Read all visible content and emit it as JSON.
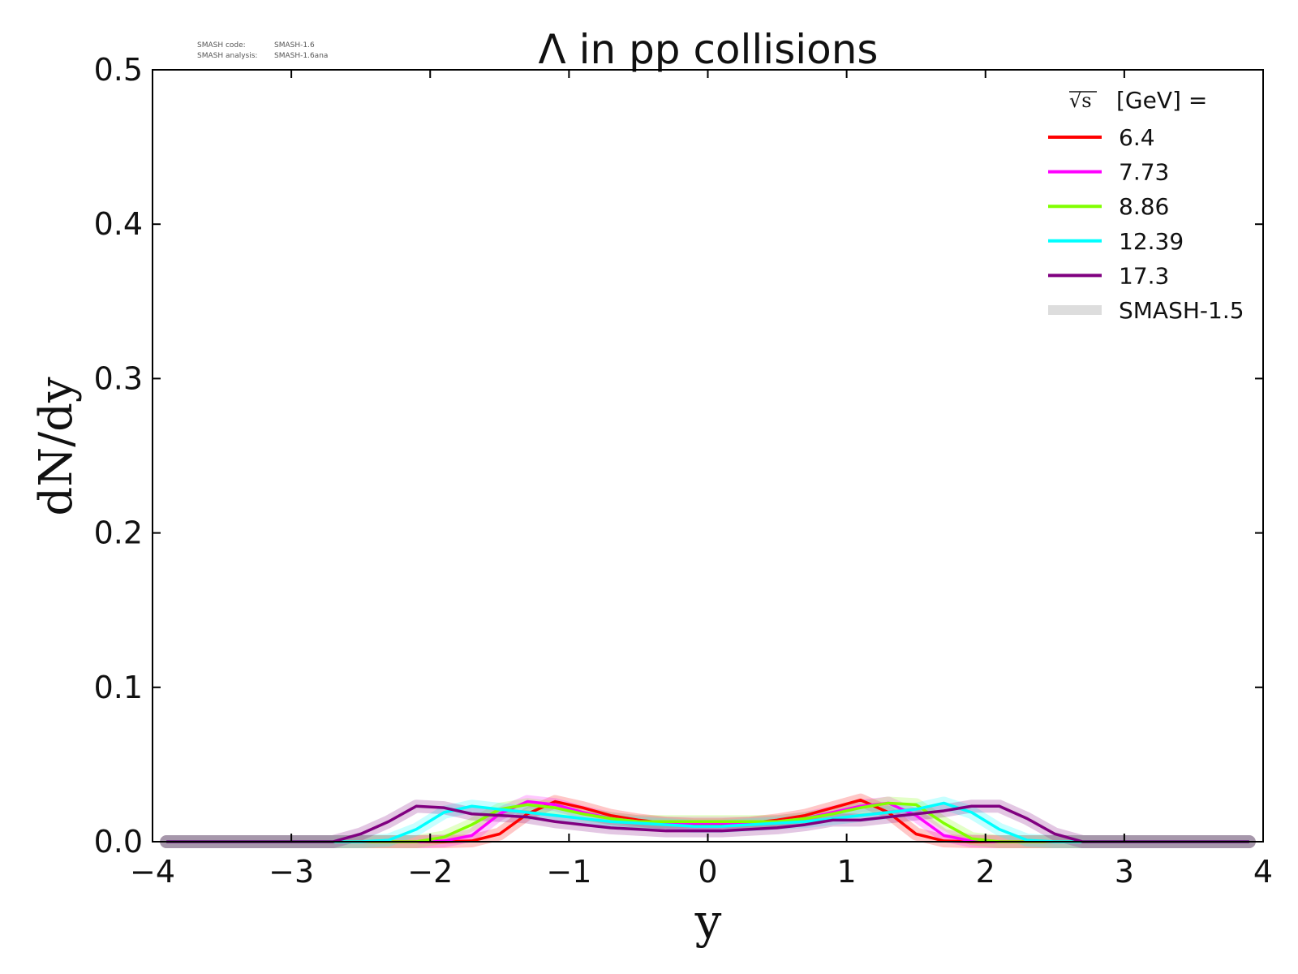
{
  "chart_data": {
    "type": "line",
    "title": "Λ in pp collisions",
    "xlabel": "y",
    "ylabel": "dN/dy",
    "xlim": [
      -4,
      4
    ],
    "ylim": [
      0,
      0.5
    ],
    "xticks": [
      -4,
      -3,
      -2,
      -1,
      0,
      1,
      2,
      3,
      4
    ],
    "yticks": [
      0.0,
      0.1,
      0.2,
      0.3,
      0.4,
      0.5
    ],
    "xtick_labels": [
      "−4",
      "−3",
      "−2",
      "−1",
      "0",
      "1",
      "2",
      "3",
      "4"
    ],
    "ytick_labels": [
      "0.0",
      "0.1",
      "0.2",
      "0.3",
      "0.4",
      "0.5"
    ],
    "grid": false,
    "legend_position": "top-right",
    "legend_title": "[GeV] =",
    "legend_title_sqrt": "√s",
    "version_info": {
      "code_label": "SMASH code:",
      "code_value": "SMASH-1.6",
      "analysis_label": "SMASH analysis:",
      "analysis_value": "SMASH-1.6ana"
    },
    "x": [
      -3.9,
      -3.7,
      -3.5,
      -3.3,
      -3.1,
      -2.9,
      -2.7,
      -2.5,
      -2.3,
      -2.1,
      -1.9,
      -1.7,
      -1.5,
      -1.3,
      -1.1,
      -0.9,
      -0.7,
      -0.5,
      -0.3,
      -0.1,
      0.1,
      0.3,
      0.5,
      0.7,
      0.9,
      1.1,
      1.3,
      1.5,
      1.7,
      1.9,
      2.1,
      2.3,
      2.5,
      2.7,
      2.9,
      3.1,
      3.3,
      3.5,
      3.7,
      3.9
    ],
    "series": [
      {
        "name": "6.4",
        "color": "#ff0000",
        "values": [
          0,
          0,
          0,
          0,
          0,
          0,
          0,
          0,
          0,
          0,
          0,
          0.0005,
          0.005,
          0.018,
          0.026,
          0.022,
          0.017,
          0.014,
          0.012,
          0.011,
          0.011,
          0.012,
          0.014,
          0.017,
          0.022,
          0.027,
          0.019,
          0.005,
          0.0005,
          0,
          0,
          0,
          0,
          0,
          0,
          0,
          0,
          0,
          0,
          0
        ]
      },
      {
        "name": "7.73",
        "color": "#ff00ff",
        "values": [
          0,
          0,
          0,
          0,
          0,
          0,
          0,
          0,
          0,
          0,
          0.0005,
          0.004,
          0.018,
          0.026,
          0.024,
          0.019,
          0.015,
          0.013,
          0.012,
          0.012,
          0.012,
          0.012,
          0.013,
          0.015,
          0.019,
          0.023,
          0.025,
          0.017,
          0.004,
          0.0005,
          0,
          0,
          0,
          0,
          0,
          0,
          0,
          0,
          0,
          0
        ]
      },
      {
        "name": "8.86",
        "color": "#80ff00",
        "values": [
          0,
          0,
          0,
          0,
          0,
          0,
          0,
          0,
          0,
          0,
          0.003,
          0.011,
          0.021,
          0.024,
          0.022,
          0.018,
          0.015,
          0.013,
          0.013,
          0.013,
          0.013,
          0.013,
          0.013,
          0.015,
          0.018,
          0.022,
          0.025,
          0.024,
          0.012,
          0.002,
          0,
          0,
          0,
          0,
          0,
          0,
          0,
          0,
          0,
          0
        ]
      },
      {
        "name": "12.39",
        "color": "#00ffff",
        "values": [
          0,
          0,
          0,
          0,
          0,
          0,
          0,
          0,
          0.001,
          0.008,
          0.019,
          0.023,
          0.021,
          0.019,
          0.017,
          0.015,
          0.013,
          0.012,
          0.011,
          0.01,
          0.01,
          0.011,
          0.012,
          0.013,
          0.015,
          0.017,
          0.019,
          0.021,
          0.025,
          0.019,
          0.008,
          0.001,
          0,
          0,
          0,
          0,
          0,
          0,
          0,
          0
        ]
      },
      {
        "name": "17.3",
        "color": "#800080",
        "values": [
          0,
          0,
          0,
          0,
          0,
          0,
          0,
          0.005,
          0.013,
          0.023,
          0.022,
          0.018,
          0.017,
          0.016,
          0.013,
          0.011,
          0.009,
          0.008,
          0.007,
          0.007,
          0.007,
          0.008,
          0.009,
          0.011,
          0.014,
          0.014,
          0.016,
          0.018,
          0.02,
          0.023,
          0.023,
          0.015,
          0.005,
          0,
          0,
          0,
          0,
          0,
          0,
          0
        ]
      }
    ],
    "reference_band": {
      "name": "SMASH-1.5",
      "legend_color": "#dddddd",
      "opacity": 0.22
    }
  }
}
